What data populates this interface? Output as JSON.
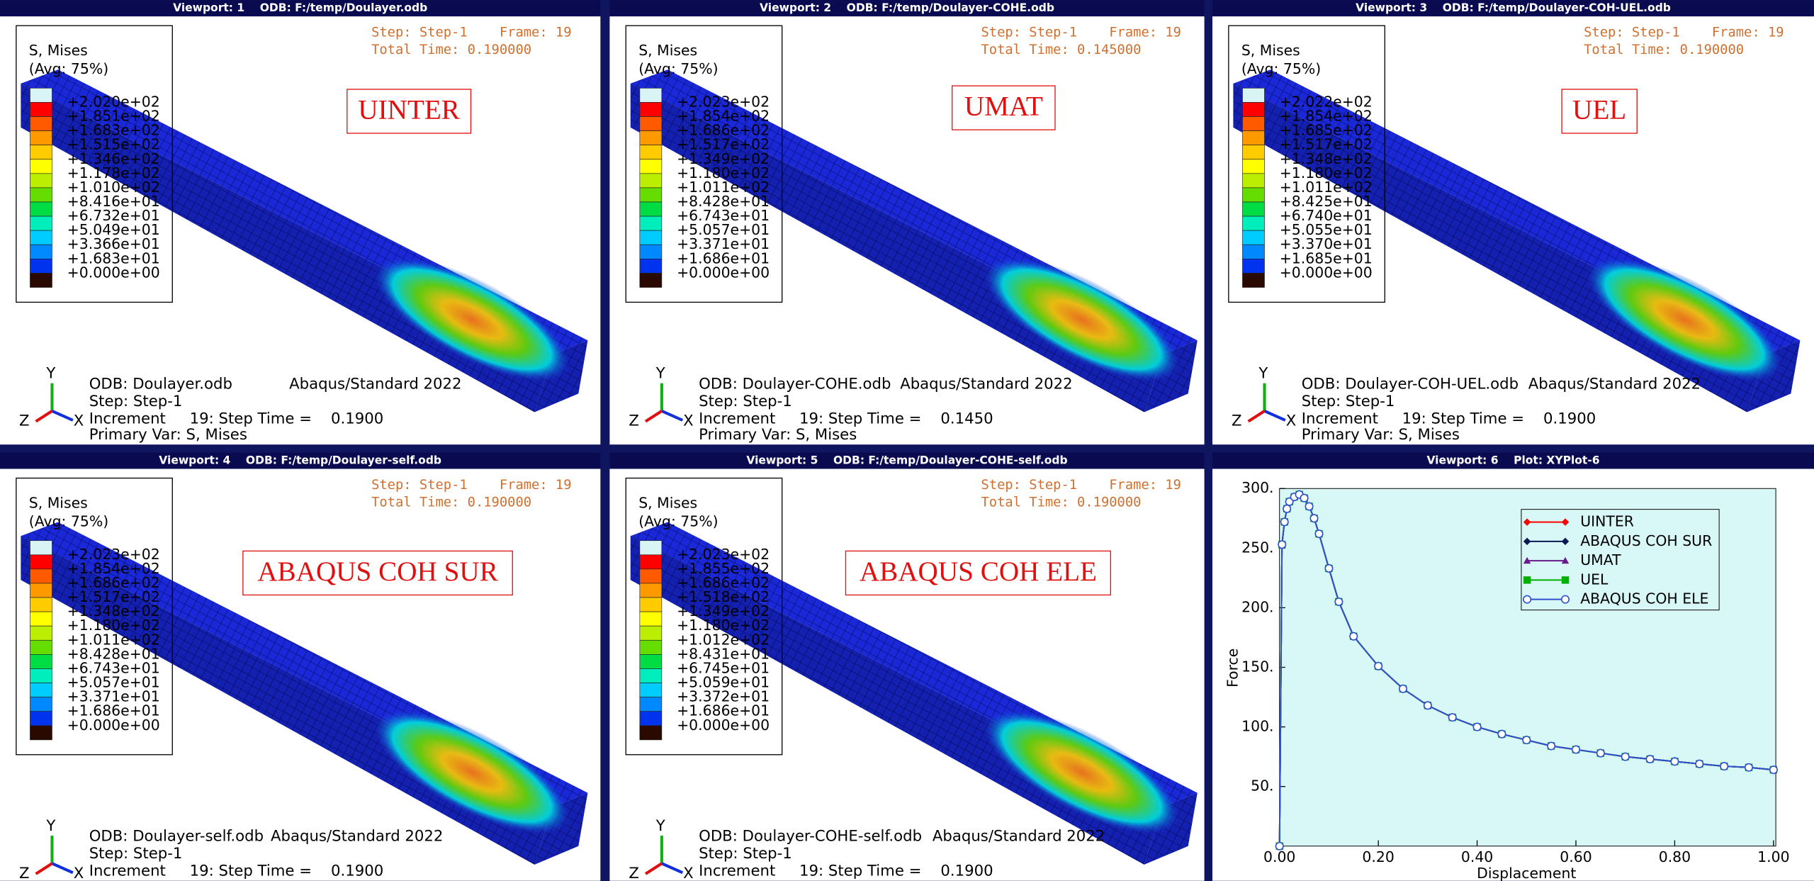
{
  "viewports": [
    {
      "title": "Viewport: 1    ODB: F:/temp/Doulayer.odb",
      "legend_title": "S, Mises",
      "legend_avg": "(Avg: 75%)",
      "legend_values": [
        "+2.020e+02",
        "+1.851e+02",
        "+1.683e+02",
        "+1.515e+02",
        "+1.346e+02",
        "+1.178e+02",
        "+1.010e+02",
        "+8.416e+01",
        "+6.732e+01",
        "+5.049e+01",
        "+3.366e+01",
        "+1.683e+01",
        "+0.000e+00"
      ],
      "step": "Step: Step-1    Frame: 19",
      "total_time": "Total Time: 0.190000",
      "label": "UINTER",
      "odb": "ODB: Doulayer.odb",
      "version": "Abaqus/Standard 2022",
      "step_line": "Step: Step-1",
      "increment": "Increment     19: Step Time =    0.1900",
      "primary_var": "Primary Var: S, Mises",
      "triad": [
        "Y",
        "Z",
        "X"
      ]
    },
    {
      "title": "Viewport: 2    ODB: F:/temp/Doulayer-COHE.odb",
      "legend_title": "S, Mises",
      "legend_avg": "(Avg: 75%)",
      "legend_values": [
        "+2.023e+02",
        "+1.854e+02",
        "+1.686e+02",
        "+1.517e+02",
        "+1.349e+02",
        "+1.180e+02",
        "+1.011e+02",
        "+8.428e+01",
        "+6.743e+01",
        "+5.057e+01",
        "+3.371e+01",
        "+1.686e+01",
        "+0.000e+00"
      ],
      "step": "Step: Step-1    Frame: 19",
      "total_time": "Total Time: 0.145000",
      "label": "UMAT",
      "odb": "ODB: Doulayer-COHE.odb",
      "version": "Abaqus/Standard 2022",
      "step_line": "Step: Step-1",
      "increment": "Increment     19: Step Time =    0.1450",
      "primary_var": "Primary Var: S, Mises",
      "triad": [
        "Y",
        "Z",
        "X"
      ]
    },
    {
      "title": "Viewport: 3    ODB: F:/temp/Doulayer-COH-UEL.odb",
      "legend_title": "S, Mises",
      "legend_avg": "(Avg: 75%)",
      "legend_values": [
        "+2.022e+02",
        "+1.854e+02",
        "+1.685e+02",
        "+1.517e+02",
        "+1.348e+02",
        "+1.180e+02",
        "+1.011e+02",
        "+8.425e+01",
        "+6.740e+01",
        "+5.055e+01",
        "+3.370e+01",
        "+1.685e+01",
        "+0.000e+00"
      ],
      "step": "Step: Step-1    Frame: 19",
      "total_time": "Total Time: 0.190000",
      "label": "UEL",
      "odb": "ODB: Doulayer-COH-UEL.odb",
      "version": "Abaqus/Standard 2022",
      "step_line": "Step: Step-1",
      "increment": "Increment     19: Step Time =    0.1900",
      "primary_var": "Primary Var: S, Mises",
      "triad": [
        "Y",
        "Z",
        "X"
      ]
    },
    {
      "title": "Viewport: 4    ODB: F:/temp/Doulayer-self.odb",
      "legend_title": "S, Mises",
      "legend_avg": "(Avg: 75%)",
      "legend_values": [
        "+2.023e+02",
        "+1.854e+02",
        "+1.686e+02",
        "+1.517e+02",
        "+1.348e+02",
        "+1.180e+02",
        "+1.011e+02",
        "+8.428e+01",
        "+6.743e+01",
        "+5.057e+01",
        "+3.371e+01",
        "+1.686e+01",
        "+0.000e+00"
      ],
      "step": "Step: Step-1    Frame: 19",
      "total_time": "Total Time: 0.190000",
      "label": "ABAQUS COH SUR",
      "odb": "ODB: Doulayer-self.odb",
      "version": "Abaqus/Standard 2022",
      "step_line": "Step: Step-1",
      "increment": "Increment     19: Step Time =    0.1900",
      "triad": [
        "Y",
        "Z",
        "X"
      ]
    },
    {
      "title": "Viewport: 5    ODB: F:/temp/Doulayer-COHE-self.odb",
      "legend_title": "S, Mises",
      "legend_avg": "(Avg: 75%)",
      "legend_values": [
        "+2.023e+02",
        "+1.855e+02",
        "+1.686e+02",
        "+1.518e+02",
        "+1.349e+02",
        "+1.180e+02",
        "+1.012e+02",
        "+8.431e+01",
        "+6.745e+01",
        "+5.059e+01",
        "+3.372e+01",
        "+1.686e+01",
        "+0.000e+00"
      ],
      "step": "Step: Step-1    Frame: 19",
      "total_time": "Total Time: 0.190000",
      "label": "ABAQUS COH ELE",
      "odb": "ODB: Doulayer-COHE-self.odb",
      "version": "Abaqus/Standard 2022",
      "step_line": "Step: Step-1",
      "increment": "Increment     19: Step Time =    0.1900",
      "triad": [
        "Y",
        "Z",
        "X"
      ]
    }
  ],
  "chart_data": {
    "type": "line",
    "title": "Viewport: 6    Plot: XYPlot-6",
    "x_label": "Displacement",
    "y_label": "Force",
    "x": [
      0,
      0.005,
      0.01,
      0.015,
      0.02,
      0.03,
      0.04,
      0.05,
      0.06,
      0.07,
      0.08,
      0.1,
      0.12,
      0.15,
      0.2,
      0.25,
      0.3,
      0.35,
      0.4,
      0.45,
      0.5,
      0.55,
      0.6,
      0.65,
      0.7,
      0.75,
      0.8,
      0.85,
      0.9,
      0.95,
      1.0
    ],
    "series": [
      {
        "name": "UINTER",
        "color": "#ff0000",
        "marker": "diamond",
        "values": [
          0,
          253,
          272,
          283,
          289,
          293,
          295,
          292,
          285,
          275,
          262,
          233,
          205,
          176,
          151,
          132,
          118,
          108,
          100,
          94,
          89,
          84,
          81,
          78,
          75,
          73,
          71,
          69,
          67,
          66,
          64
        ]
      },
      {
        "name": "ABAQUS COH SUR",
        "color": "#0a1a50",
        "marker": "diamond",
        "values": [
          0,
          253,
          272,
          283,
          289,
          293,
          295,
          292,
          285,
          275,
          262,
          233,
          205,
          176,
          151,
          132,
          118,
          108,
          100,
          94,
          89,
          84,
          81,
          78,
          75,
          73,
          71,
          69,
          67,
          66,
          64
        ]
      },
      {
        "name": "UMAT",
        "color": "#6a1a8a",
        "marker": "triangle",
        "values": [
          0,
          253,
          272,
          283,
          289,
          293,
          295,
          292,
          285,
          275,
          262,
          233,
          205,
          176,
          151,
          132,
          118,
          108,
          100,
          94,
          89,
          84,
          81,
          78,
          75,
          73,
          71,
          69,
          67,
          66,
          64
        ]
      },
      {
        "name": "UEL",
        "color": "#00b000",
        "marker": "square",
        "values": [
          0,
          253,
          272,
          283,
          289,
          293,
          295,
          292,
          285,
          275,
          262,
          233,
          205,
          176,
          151,
          132,
          118,
          108,
          100,
          94,
          89,
          84,
          81,
          78,
          75,
          73,
          71,
          69,
          67,
          66,
          64
        ]
      },
      {
        "name": "ABAQUS COH ELE",
        "color": "#3050d0",
        "marker": "circle",
        "values": [
          0,
          253,
          272,
          283,
          289,
          293,
          295,
          292,
          285,
          275,
          262,
          233,
          205,
          176,
          151,
          132,
          118,
          108,
          100,
          94,
          89,
          84,
          81,
          78,
          75,
          73,
          71,
          69,
          67,
          66,
          64
        ]
      }
    ],
    "xlim": [
      0,
      1
    ],
    "ylim": [
      0,
      300
    ],
    "xticks": [
      {
        "value": 0,
        "label": "0.00"
      },
      {
        "value": 0.2,
        "label": "0.20"
      },
      {
        "value": 0.4,
        "label": "0.40"
      },
      {
        "value": 0.6,
        "label": "0.60"
      },
      {
        "value": 0.8,
        "label": "0.80"
      },
      {
        "value": 1,
        "label": "1.00"
      }
    ],
    "yticks": [
      {
        "value": 50,
        "label": "50."
      },
      {
        "value": 100,
        "label": "100."
      },
      {
        "value": 150,
        "label": "150."
      },
      {
        "value": 200,
        "label": "200."
      },
      {
        "value": 250,
        "label": "250."
      },
      {
        "value": 300,
        "label": "300."
      }
    ],
    "legend": "top-right",
    "background": "#d8f8f8"
  }
}
